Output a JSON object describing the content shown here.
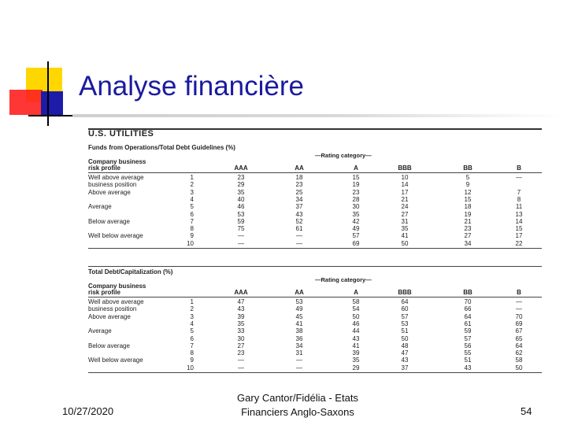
{
  "slide": {
    "title": "Analyse financière",
    "footer": {
      "date": "10/27/2020",
      "credit_line1": "Gary Cantor/Fidélia - Etats",
      "credit_line2": "Financiers Anglo-Saxons",
      "page": "54"
    }
  },
  "scan": {
    "heading": "U.S. UTILITIES",
    "columns": [
      "AAA",
      "AA",
      "A",
      "BBB",
      "BB",
      "B"
    ],
    "rating_category": "Rating category",
    "risk_profile_label": [
      "Company business",
      "risk profile"
    ],
    "table1": {
      "title": "Funds from Operations/Total Debt Guidelines (%)",
      "rows": [
        {
          "label": "Well above average",
          "n": "1",
          "v": [
            "23",
            "18",
            "15",
            "10",
            "5",
            "—"
          ]
        },
        {
          "label": "business position",
          "n": "2",
          "v": [
            "29",
            "23",
            "19",
            "14",
            "9",
            ""
          ]
        },
        {
          "label": "Above average",
          "n": "3",
          "v": [
            "35",
            "25",
            "23",
            "17",
            "12",
            "7"
          ]
        },
        {
          "label": "",
          "n": "4",
          "v": [
            "40",
            "34",
            "28",
            "21",
            "15",
            "8"
          ]
        },
        {
          "label": "Average",
          "n": "5",
          "v": [
            "46",
            "37",
            "30",
            "24",
            "18",
            "11"
          ]
        },
        {
          "label": "",
          "n": "6",
          "v": [
            "53",
            "43",
            "35",
            "27",
            "19",
            "13"
          ]
        },
        {
          "label": "Below average",
          "n": "7",
          "v": [
            "59",
            "52",
            "42",
            "31",
            "21",
            "14"
          ]
        },
        {
          "label": "",
          "n": "8",
          "v": [
            "75",
            "61",
            "49",
            "35",
            "23",
            "15"
          ]
        },
        {
          "label": "Well below average",
          "n": "9",
          "v": [
            "—",
            "—",
            "57",
            "41",
            "27",
            "17"
          ]
        },
        {
          "label": "",
          "n": "10",
          "v": [
            "—",
            "—",
            "69",
            "50",
            "34",
            "22"
          ]
        }
      ]
    },
    "table2": {
      "title": "Total Debt/Capitalization (%)",
      "rows": [
        {
          "label": "Well above average",
          "n": "1",
          "v": [
            "47",
            "53",
            "58",
            "64",
            "70",
            "—"
          ]
        },
        {
          "label": "business position",
          "n": "2",
          "v": [
            "43",
            "49",
            "54",
            "60",
            "66",
            "—"
          ]
        },
        {
          "label": "Above average",
          "n": "3",
          "v": [
            "39",
            "45",
            "50",
            "57",
            "64",
            "70"
          ]
        },
        {
          "label": "",
          "n": "4",
          "v": [
            "35",
            "41",
            "46",
            "53",
            "61",
            "69"
          ]
        },
        {
          "label": "Average",
          "n": "5",
          "v": [
            "33",
            "38",
            "44",
            "51",
            "59",
            "67"
          ]
        },
        {
          "label": "",
          "n": "6",
          "v": [
            "30",
            "36",
            "43",
            "50",
            "57",
            "65"
          ]
        },
        {
          "label": "Below average",
          "n": "7",
          "v": [
            "27",
            "34",
            "41",
            "48",
            "56",
            "64"
          ]
        },
        {
          "label": "",
          "n": "8",
          "v": [
            "23",
            "31",
            "39",
            "47",
            "55",
            "62"
          ]
        },
        {
          "label": "Well below average",
          "n": "9",
          "v": [
            "—",
            "—",
            "35",
            "43",
            "51",
            "58"
          ]
        },
        {
          "label": "",
          "n": "10",
          "v": [
            "—",
            "—",
            "29",
            "37",
            "43",
            "50"
          ]
        }
      ]
    }
  }
}
